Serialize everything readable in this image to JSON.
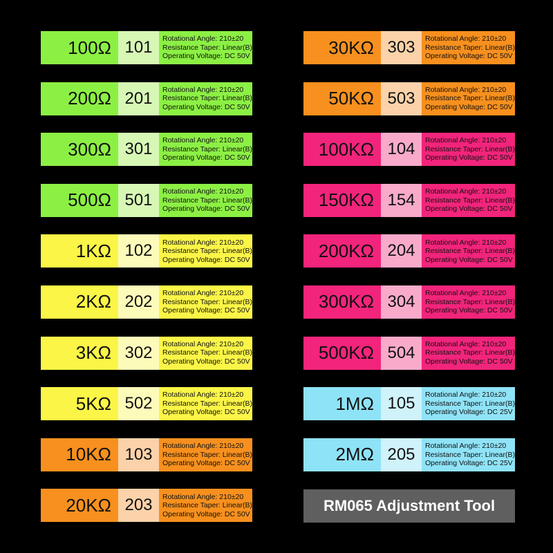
{
  "left_column": [
    {
      "value": "100Ω",
      "code": "101",
      "angle": "Rotational Angle: 210±20",
      "taper": "Resistance Taper: Linear(B)",
      "voltage": "Operating Voltage: DC 50V",
      "color_main": "#8cf044",
      "color_code": "#d7f8b5"
    },
    {
      "value": "200Ω",
      "code": "201",
      "angle": "Rotational Angle: 210±20",
      "taper": "Resistance Taper: Linear(B)",
      "voltage": "Operating Voltage: DC 50V",
      "color_main": "#8cf044",
      "color_code": "#d7f8b5"
    },
    {
      "value": "300Ω",
      "code": "301",
      "angle": "Rotational Angle: 210±20",
      "taper": "Resistance Taper: Linear(B)",
      "voltage": "Operating Voltage: DC 50V",
      "color_main": "#8cf044",
      "color_code": "#d7f8b5"
    },
    {
      "value": "500Ω",
      "code": "501",
      "angle": "Rotational Angle: 210±20",
      "taper": "Resistance Taper: Linear(B)",
      "voltage": "Operating Voltage: DC 50V",
      "color_main": "#8cf044",
      "color_code": "#d7f8b5"
    },
    {
      "value": "1KΩ",
      "code": "102",
      "angle": "Rotational Angle: 210±20",
      "taper": "Resistance Taper: Linear(B)",
      "voltage": "Operating Voltage: DC 50V",
      "color_main": "#fbf547",
      "color_code": "#fdfbb9"
    },
    {
      "value": "2KΩ",
      "code": "202",
      "angle": "Rotational Angle: 210±20",
      "taper": "Resistance Taper: Linear(B)",
      "voltage": "Operating Voltage: DC 50V",
      "color_main": "#fbf547",
      "color_code": "#fdfbb9"
    },
    {
      "value": "3KΩ",
      "code": "302",
      "angle": "Rotational Angle: 210±20",
      "taper": "Resistance Taper: Linear(B)",
      "voltage": "Operating Voltage: DC 50V",
      "color_main": "#fbf547",
      "color_code": "#fdfbb9"
    },
    {
      "value": "5KΩ",
      "code": "502",
      "angle": "Rotational Angle: 210±20",
      "taper": "Resistance Taper: Linear(B)",
      "voltage": "Operating Voltage: DC 50V",
      "color_main": "#fbf547",
      "color_code": "#fdfbb9"
    },
    {
      "value": "10KΩ",
      "code": "103",
      "angle": "Rotational Angle: 210±20",
      "taper": "Resistance Taper: Linear(B)",
      "voltage": "Operating Voltage: DC 50V",
      "color_main": "#f7901e",
      "color_code": "#fbd2a9"
    },
    {
      "value": "20KΩ",
      "code": "203",
      "angle": "Rotational Angle: 210±20",
      "taper": "Resistance Taper: Linear(B)",
      "voltage": "Operating Voltage: DC 50V",
      "color_main": "#f7901e",
      "color_code": "#fbd2a9"
    }
  ],
  "right_column": [
    {
      "value": "30KΩ",
      "code": "303",
      "angle": "Rotational Angle: 210±20",
      "taper": "Resistance Taper: Linear(B)",
      "voltage": "Operating Voltage: DC 50V",
      "color_main": "#f7901e",
      "color_code": "#fbd2a9"
    },
    {
      "value": "50KΩ",
      "code": "503",
      "angle": "Rotational Angle: 210±20",
      "taper": "Resistance Taper: Linear(B)",
      "voltage": "Operating Voltage: DC 50V",
      "color_main": "#f7901e",
      "color_code": "#fbd2a9"
    },
    {
      "value": "100KΩ",
      "code": "104",
      "angle": "Rotational Angle: 210±20",
      "taper": "Resistance Taper: Linear(B)",
      "voltage": "Operating Voltage: DC 50V",
      "color_main": "#f2247b",
      "color_code": "#f9aacb"
    },
    {
      "value": "150KΩ",
      "code": "154",
      "angle": "Rotational Angle: 210±20",
      "taper": "Resistance Taper: Linear(B)",
      "voltage": "Operating Voltage: DC 50V",
      "color_main": "#f2247b",
      "color_code": "#f9aacb"
    },
    {
      "value": "200KΩ",
      "code": "204",
      "angle": "Rotational Angle: 210±20",
      "taper": "Resistance Taper: Linear(B)",
      "voltage": "Operating Voltage: DC 50V",
      "color_main": "#f2247b",
      "color_code": "#f9aacb"
    },
    {
      "value": "300KΩ",
      "code": "304",
      "angle": "Rotational Angle: 210±20",
      "taper": "Resistance Taper: Linear(B)",
      "voltage": "Operating Voltage: DC 50V",
      "color_main": "#f2247b",
      "color_code": "#f9aacb"
    },
    {
      "value": "500KΩ",
      "code": "504",
      "angle": "Rotational Angle: 210±20",
      "taper": "Resistance Taper: Linear(B)",
      "voltage": "Operating Voltage: DC 50V",
      "color_main": "#f2247b",
      "color_code": "#f9aacb"
    },
    {
      "value": "1MΩ",
      "code": "105",
      "angle": "Rotational Angle: 210±20",
      "taper": "Resistance Taper: Linear(B)",
      "voltage": "Operating Voltage: DC 25V",
      "color_main": "#8fe3f7",
      "color_code": "#cff2fb"
    },
    {
      "value": "2MΩ",
      "code": "205",
      "angle": "Rotational Angle: 210±20",
      "taper": "Resistance Taper: Linear(B)",
      "voltage": "Operating Voltage: DC 25V",
      "color_main": "#8fe3f7",
      "color_code": "#cff2fb"
    }
  ],
  "tool_title": "RM065 Adjustment Tool",
  "tool_title_color": "#5f5f5f"
}
